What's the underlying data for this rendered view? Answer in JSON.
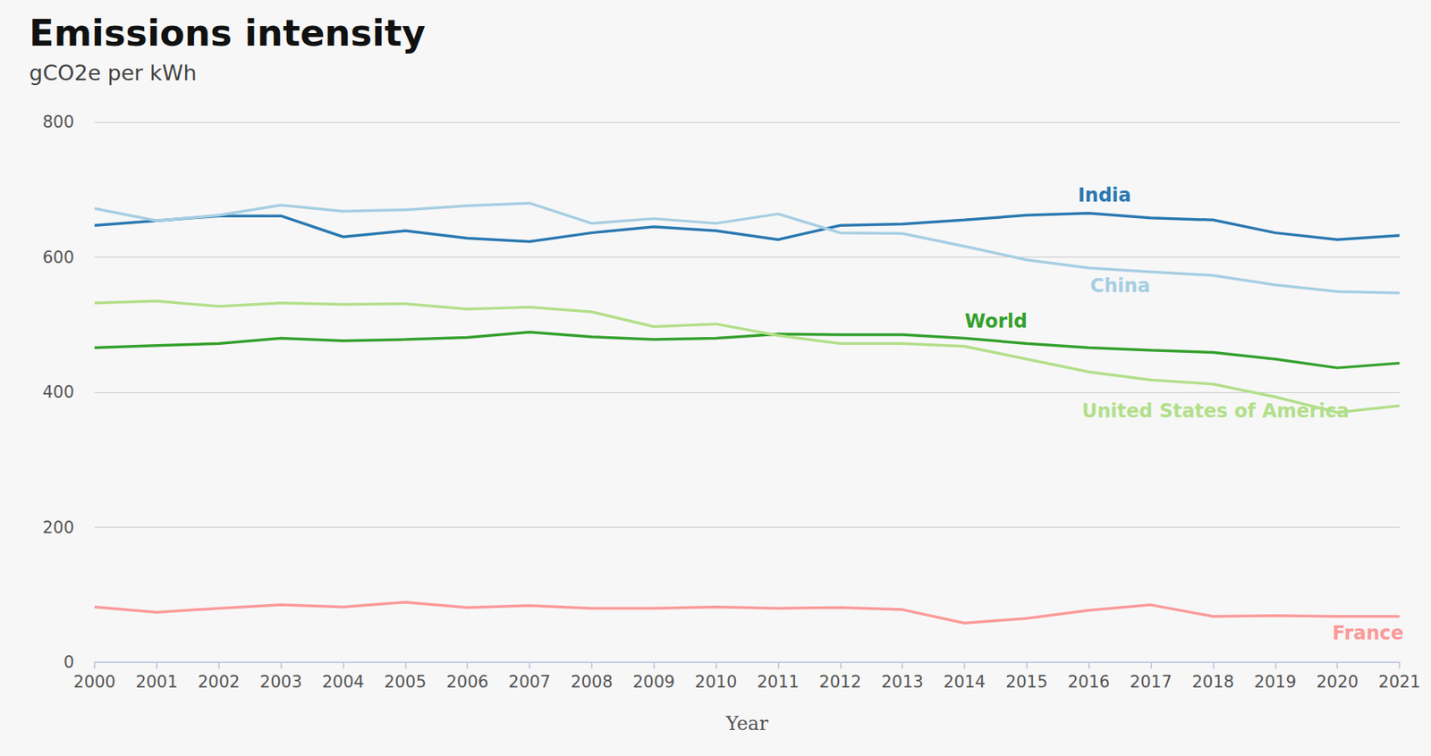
{
  "chart_data": {
    "type": "line",
    "title": "Emissions intensity",
    "subtitle": "gCO2e per kWh",
    "x_label": "Year",
    "categories": [
      "2000",
      "2001",
      "2002",
      "2003",
      "2004",
      "2005",
      "2006",
      "2007",
      "2008",
      "2009",
      "2010",
      "2011",
      "2012",
      "2013",
      "2014",
      "2015",
      "2016",
      "2017",
      "2018",
      "2019",
      "2020",
      "2021"
    ],
    "ylim": [
      0,
      800
    ],
    "yticks": [
      0,
      200,
      400,
      600,
      800
    ],
    "grid": true,
    "series": [
      {
        "name": "India",
        "color": "#2a78b1",
        "values": [
          647,
          654,
          661,
          661,
          630,
          639,
          628,
          623,
          636,
          645,
          639,
          626,
          647,
          649,
          655,
          662,
          665,
          658,
          655,
          636,
          626,
          632
        ]
      },
      {
        "name": "China",
        "color": "#a6cee3",
        "values": [
          672,
          654,
          662,
          677,
          668,
          670,
          676,
          680,
          650,
          657,
          650,
          664,
          636,
          635,
          616,
          596,
          584,
          578,
          573,
          559,
          549,
          547
        ]
      },
      {
        "name": "World",
        "color": "#33a02c",
        "values": [
          466,
          469,
          472,
          480,
          476,
          478,
          481,
          489,
          482,
          478,
          480,
          486,
          485,
          485,
          480,
          472,
          466,
          462,
          459,
          449,
          436,
          443
        ]
      },
      {
        "name": "United States of America",
        "color": "#b2df8a",
        "values": [
          532,
          535,
          527,
          532,
          530,
          531,
          523,
          526,
          519,
          497,
          501,
          484,
          472,
          472,
          468,
          449,
          430,
          418,
          412,
          393,
          370,
          380
        ]
      },
      {
        "name": "France",
        "color": "#fb9a99",
        "values": [
          82,
          74,
          80,
          85,
          82,
          89,
          81,
          84,
          80,
          80,
          82,
          80,
          81,
          78,
          58,
          65,
          77,
          85,
          68,
          69,
          68,
          68
        ]
      }
    ]
  }
}
